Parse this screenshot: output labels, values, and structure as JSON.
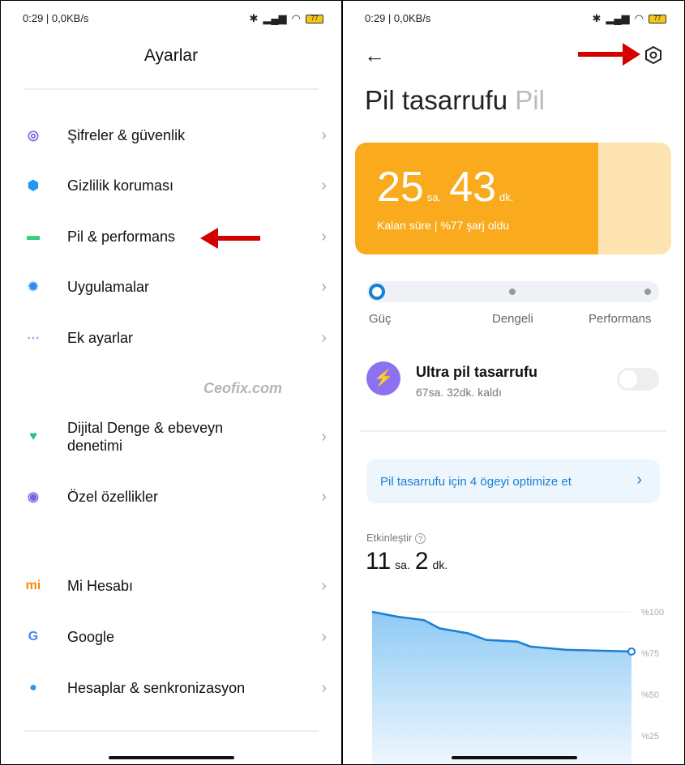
{
  "status": {
    "time": "0:29 | 0,0KB/s",
    "battery": "77"
  },
  "left": {
    "title": "Ayarlar",
    "items": [
      {
        "label": "Şifreler & güvenlik",
        "icon": "fingerprint-icon",
        "color": "#6b5fe0"
      },
      {
        "label": "Gizlilik koruması",
        "icon": "shield-icon",
        "color": "#2196f3"
      },
      {
        "label": "Pil & performans",
        "icon": "battery-icon",
        "color": "#2fd07f"
      },
      {
        "label": "Uygulamalar",
        "icon": "gear-icon",
        "color": "#2a8ef0"
      },
      {
        "label": "Ek ayarlar",
        "icon": "more-icon",
        "color": "#8fb4e8"
      },
      {
        "label": "Dijital Denge & ebeveyn denetimi",
        "icon": "heart-person-icon",
        "color": "#28c37a"
      },
      {
        "label": "Özel özellikler",
        "icon": "special-icon",
        "color": "#7b61e8"
      },
      {
        "label": "Mi Hesabı",
        "icon": "mi-logo-icon",
        "color": "#ff8a00"
      },
      {
        "label": "Google",
        "icon": "google-icon",
        "color": "#4285f4"
      },
      {
        "label": "Hesaplar & senkronizasyon",
        "icon": "person-icon",
        "color": "#2196f3"
      }
    ]
  },
  "right": {
    "title": "Pil tasarrufu",
    "title_secondary": "Pil",
    "remaining": {
      "hours": "25",
      "h_unit": "sa.",
      "minutes": "43",
      "m_unit": "dk.",
      "caption": "Kalan süre | %77 şarj oldu",
      "charge_percent": 77
    },
    "modes": [
      "Güç",
      "Dengeli",
      "Performans"
    ],
    "selected_mode": "Güç",
    "ultra": {
      "title": "Ultra pil tasarrufu",
      "subtitle": "67sa. 32dk. kaldı",
      "enabled": false
    },
    "optimize": "Pil tasarrufu için 4 ögeyi optimize et",
    "usage": {
      "label": "Etkinleştir",
      "hours": "11",
      "h_unit": "sa.",
      "minutes": "2",
      "m_unit": "dk."
    }
  },
  "watermark": "Ceofix.com",
  "colors": {
    "accent": "#f9ab1d",
    "blue": "#1a7fd4"
  },
  "chart_data": {
    "type": "area",
    "y_ticks": [
      "%100",
      "%75",
      "%50",
      "%25"
    ],
    "ylim": [
      0,
      100
    ],
    "x": [
      0,
      1,
      2,
      2.6,
      3.7,
      4.4,
      5.6,
      6.1,
      7.5,
      10
    ],
    "values": [
      100,
      97,
      95,
      90,
      87,
      83,
      82,
      79,
      77,
      76
    ]
  }
}
